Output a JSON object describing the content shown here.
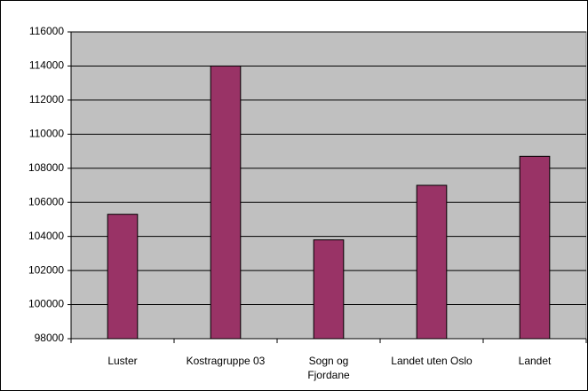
{
  "chart_data": {
    "type": "bar",
    "categories": [
      "Luster",
      "Kostragruppe 03",
      "Sogn og Fjordane",
      "Landet uten Oslo",
      "Landet"
    ],
    "values": [
      105300,
      114000,
      103800,
      107000,
      108700
    ],
    "color": "#993366",
    "ylim": [
      98000,
      116000
    ],
    "yticks": [
      98000,
      100000,
      102000,
      104000,
      106000,
      108000,
      110000,
      112000,
      114000,
      116000
    ],
    "grid": true
  }
}
